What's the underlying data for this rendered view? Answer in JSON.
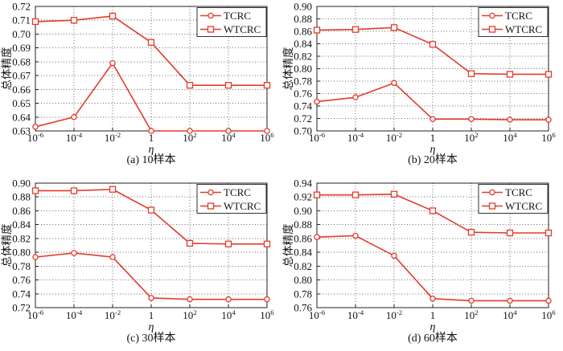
{
  "figure": {
    "colors": {
      "background": "#ffffff",
      "line_red": "#e33b2b",
      "grid": "#6b6b6b",
      "axis": "#222222",
      "text": "#111111",
      "legend_border": "#333333",
      "marker_fill": "#ffffff"
    }
  },
  "chart_data": [
    {
      "id": "a",
      "type": "line",
      "caption": "(a) 10样本",
      "xlabel": "η",
      "ylabel": "总体精度",
      "xticks": [
        "10^-6",
        "10^-4",
        "10^-2",
        "1",
        "10^2",
        "10^4",
        "10^6"
      ],
      "ylim": [
        0.63,
        0.72
      ],
      "ytick_step": 0.01,
      "grid": "dotted",
      "legend": {
        "position": "top-right",
        "entries": [
          "TCRC",
          "WTCRC"
        ]
      },
      "series": [
        {
          "name": "TCRC",
          "marker": "circle",
          "values": [
            0.633,
            0.64,
            0.679,
            0.63,
            0.63,
            0.63,
            0.63
          ]
        },
        {
          "name": "WTCRC",
          "marker": "square",
          "values": [
            0.709,
            0.71,
            0.713,
            0.694,
            0.663,
            0.663,
            0.663
          ]
        }
      ]
    },
    {
      "id": "b",
      "type": "line",
      "caption": "(b) 20样本",
      "xlabel": "η",
      "ylabel": "总体精度",
      "xticks": [
        "10^-6",
        "10^-4",
        "10^-2",
        "1",
        "10^2",
        "10^4",
        "10^6"
      ],
      "ylim": [
        0.7,
        0.9
      ],
      "ytick_step": 0.02,
      "grid": "dotted",
      "legend": {
        "position": "top-right",
        "entries": [
          "TCRC",
          "WTCRC"
        ]
      },
      "series": [
        {
          "name": "TCRC",
          "marker": "circle",
          "values": [
            0.747,
            0.754,
            0.777,
            0.719,
            0.719,
            0.718,
            0.718
          ]
        },
        {
          "name": "WTCRC",
          "marker": "square",
          "values": [
            0.862,
            0.863,
            0.866,
            0.839,
            0.792,
            0.791,
            0.791
          ]
        }
      ]
    },
    {
      "id": "c",
      "type": "line",
      "caption": "(c) 30样本",
      "xlabel": "η",
      "ylabel": "总体精度",
      "xticks": [
        "10^-6",
        "10^-4",
        "10^-2",
        "1",
        "10^2",
        "10^4",
        "10^6"
      ],
      "ylim": [
        0.72,
        0.9
      ],
      "ytick_step": 0.02,
      "grid": "dotted",
      "legend": {
        "position": "top-right",
        "entries": [
          "TCRC",
          "WTCRC"
        ]
      },
      "series": [
        {
          "name": "TCRC",
          "marker": "circle",
          "values": [
            0.793,
            0.799,
            0.793,
            0.734,
            0.732,
            0.732,
            0.732
          ]
        },
        {
          "name": "WTCRC",
          "marker": "square",
          "values": [
            0.889,
            0.889,
            0.891,
            0.861,
            0.813,
            0.812,
            0.812
          ]
        }
      ]
    },
    {
      "id": "d",
      "type": "line",
      "caption": "(d) 60样本",
      "xlabel": "η",
      "ylabel": "总体精度",
      "xticks": [
        "10^-6",
        "10^-4",
        "10^-2",
        "1",
        "10^2",
        "10^4",
        "10^6"
      ],
      "ylim": [
        0.76,
        0.94
      ],
      "ytick_step": 0.02,
      "grid": "dotted",
      "legend": {
        "position": "top-right",
        "entries": [
          "TCRC",
          "WTCRC"
        ]
      },
      "series": [
        {
          "name": "TCRC",
          "marker": "circle",
          "values": [
            0.862,
            0.864,
            0.835,
            0.773,
            0.77,
            0.77,
            0.77
          ]
        },
        {
          "name": "WTCRC",
          "marker": "square",
          "values": [
            0.923,
            0.923,
            0.924,
            0.9,
            0.869,
            0.868,
            0.868
          ]
        }
      ]
    }
  ]
}
